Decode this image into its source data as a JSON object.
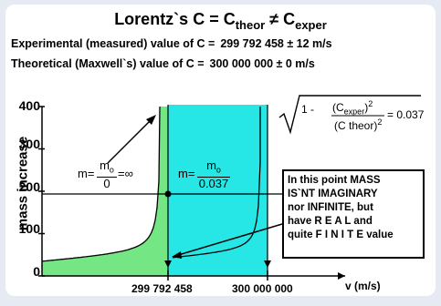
{
  "title": {
    "main": "Lorentz`s C = C",
    "sub1": "theor",
    "neq": " ≠ C",
    "sub2": "exper"
  },
  "lines": {
    "experimental_label": "Experimental (measured) value of C =",
    "experimental_value": "299 792 458 ± 12 m/s",
    "theoretical_label": "Theoretical  (Maxwell`s)  value of  C =",
    "theoretical_value": "300 000 000 ±   0 m/s"
  },
  "formula": {
    "sqrt_lead": "1 -",
    "num": "(C",
    "num_sub": "exper",
    "num_end": ")",
    "num_sup": "2",
    "den": "(C theor)",
    "den_sup": "2",
    "result": "= 0.037"
  },
  "mass_labels": {
    "left_prefix": "m=",
    "left_num": "m",
    "left_num_sub": "o",
    "left_den": "0",
    "left_suffix": "=∞",
    "right_prefix": "m=",
    "right_num": "m",
    "right_num_sub": "o",
    "right_den": "0.037"
  },
  "note": {
    "lines": [
      "In this point MASS",
      "IS`NT  IMAGINARY",
      "nor INFINITE, but",
      "have  R E A L  and",
      "quite F I N I T E value"
    ]
  },
  "colors": {
    "background": "#e6ebf3",
    "green_region": "#74e683",
    "cyan_region": "#27e6e6",
    "curve": "#000000"
  },
  "chart_data": {
    "type": "line",
    "ylabel": "mass increase",
    "xlabel": "v (m/s)",
    "ylim": [
      0,
      400
    ],
    "yticks": [
      "0",
      "100",
      "200",
      "300",
      "400"
    ],
    "x_tick_labels": [
      "299 792 458",
      "300 000 000"
    ],
    "horizontal_line_y": 200,
    "marked_point": {
      "x": "299 792 458",
      "y": 200
    },
    "regions": [
      {
        "name": "green",
        "from": "0",
        "to": "299 792 458"
      },
      {
        "name": "cyan",
        "from": "299 792 458",
        "to": "300 000 000"
      }
    ]
  }
}
